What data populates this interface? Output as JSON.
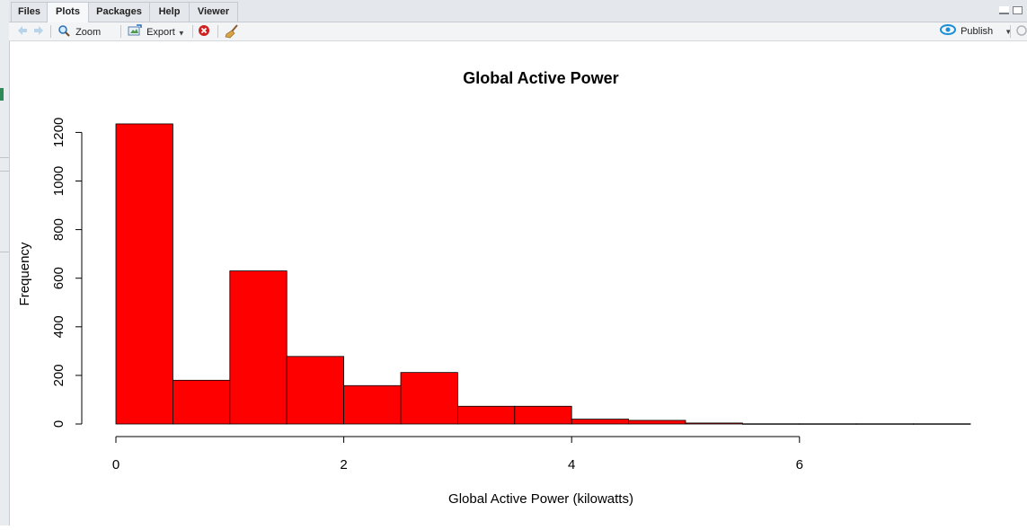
{
  "tabs": [
    {
      "label": "Files",
      "active": false
    },
    {
      "label": "Plots",
      "active": true
    },
    {
      "label": "Packages",
      "active": false
    },
    {
      "label": "Help",
      "active": false
    },
    {
      "label": "Viewer",
      "active": false
    }
  ],
  "toolbar": {
    "zoom_label": "Zoom",
    "export_label": "Export",
    "publish_label": "Publish",
    "icons": [
      "back-arrow-icon",
      "forward-arrow-icon",
      "zoom-icon",
      "export-icon",
      "remove-plot-icon",
      "broom-icon",
      "publish-icon"
    ]
  },
  "colors": {
    "bar_fill": "#ff0000",
    "bar_stroke": "#000000",
    "publish_icon": "#1a8fd6",
    "remove_icon": "#cc2222"
  },
  "chart_data": {
    "type": "bar",
    "subtype": "histogram",
    "title": "Global Active Power",
    "xlabel": "Global Active Power (kilowatts)",
    "ylabel": "Frequency",
    "bin_edges": [
      0,
      0.5,
      1,
      1.5,
      2,
      2.5,
      3,
      3.5,
      4,
      4.5,
      5,
      5.5,
      6,
      6.5,
      7,
      7.5
    ],
    "values": [
      1235,
      180,
      630,
      278,
      158,
      212,
      73,
      73,
      20,
      15,
      4,
      1,
      1,
      1,
      1
    ],
    "xlim": [
      0,
      7.5
    ],
    "ylim": [
      0,
      1250
    ],
    "x_ticks": [
      0,
      2,
      4,
      6
    ],
    "x_tick_labels": [
      "0",
      "2",
      "4",
      "6"
    ],
    "y_ticks": [
      0,
      200,
      400,
      600,
      800,
      1000,
      1200
    ],
    "y_tick_labels": [
      "0",
      "200",
      "400",
      "600",
      "800",
      "1000",
      "1200"
    ],
    "grid": false
  }
}
